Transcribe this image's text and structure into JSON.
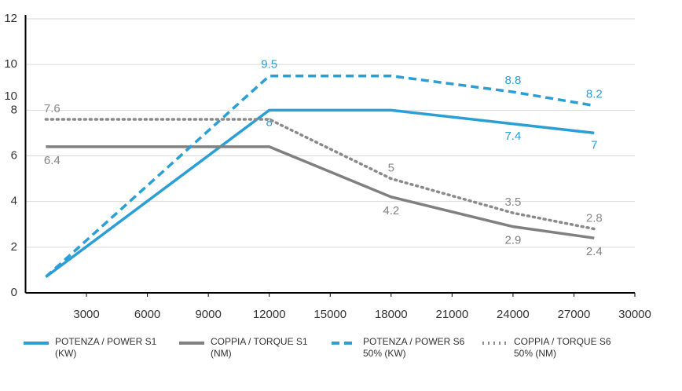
{
  "chart_data": {
    "type": "line",
    "x": [
      1000,
      12000,
      18000,
      24000,
      28000
    ],
    "xlim": [
      0,
      30000
    ],
    "xticks": [
      3000,
      6000,
      9000,
      12000,
      15000,
      18000,
      21000,
      24000,
      27000,
      30000
    ],
    "ylim": [
      0,
      12
    ],
    "yticks": [
      0,
      2,
      4,
      6,
      8,
      10,
      12
    ],
    "grid": true,
    "annotations": [
      {
        "text": "10",
        "y": 8.6
      }
    ],
    "series": [
      {
        "name": "POTENZA / POWER S1 (KW)",
        "color": "#2a9fd6",
        "dash": "solid",
        "values": [
          0.7,
          8,
          8,
          7.4,
          7
        ],
        "value_labels": [
          null,
          "8",
          null,
          "7.4",
          "7"
        ]
      },
      {
        "name": "COPPIA / TORQUE S1 (NM)",
        "color": "#808080",
        "dash": "solid",
        "values": [
          6.4,
          6.4,
          4.2,
          2.9,
          2.4
        ],
        "value_labels": [
          "6.4",
          null,
          "4.2",
          "2.9",
          "2.4"
        ]
      },
      {
        "name": "POTENZA / POWER S6 50% (KW)",
        "color": "#2a9fd6",
        "dash": "dashed",
        "values": [
          0.7,
          9.5,
          9.5,
          8.8,
          8.2
        ],
        "value_labels": [
          null,
          "9.5",
          null,
          "8.8",
          "8.2"
        ]
      },
      {
        "name": "COPPIA / TORQUE S6 50% (NM)",
        "color": "#8a8a8a",
        "dash": "dotted",
        "values": [
          7.6,
          7.6,
          5,
          3.5,
          2.8
        ],
        "value_labels": [
          "7.6",
          null,
          "5",
          "3.5",
          "2.8"
        ]
      }
    ]
  }
}
